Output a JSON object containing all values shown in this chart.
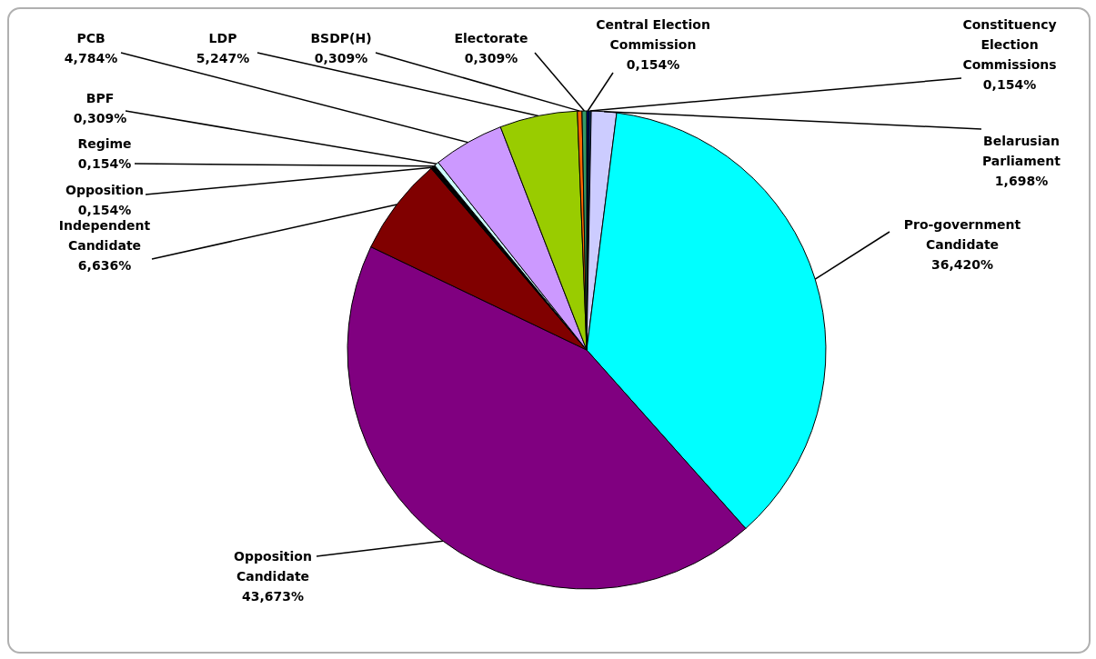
{
  "chart_data": {
    "type": "pie",
    "categories": [
      "Central Election Commission",
      "Constituency Election Commissions",
      "Belarusian Parliament",
      "Pro-government Candidate",
      "Opposition Candidate",
      "Independent Candidate",
      "Opposition",
      "Regime",
      "BPF",
      "PCB",
      "LDP",
      "BSDP(H)",
      "Electorate"
    ],
    "values": [
      0.154,
      0.154,
      1.698,
      36.42,
      43.673,
      6.636,
      0.154,
      0.154,
      0.309,
      4.784,
      5.247,
      0.309,
      0.309
    ],
    "value_labels": [
      "0,154%",
      "0,154%",
      "1,698%",
      "36,420%",
      "43,673%",
      "6,636%",
      "0,154%",
      "0,154%",
      "0,309%",
      "4,784%",
      "5,247%",
      "0,309%",
      "0,309%"
    ],
    "colors": [
      "#000080",
      "#003366",
      "#ccccff",
      "#00ffff",
      "#800080",
      "#800000",
      "#000000",
      "#000000",
      "#ccffff",
      "#cc99ff",
      "#99cc00",
      "#ff6600",
      "#339966"
    ],
    "legend": false
  }
}
